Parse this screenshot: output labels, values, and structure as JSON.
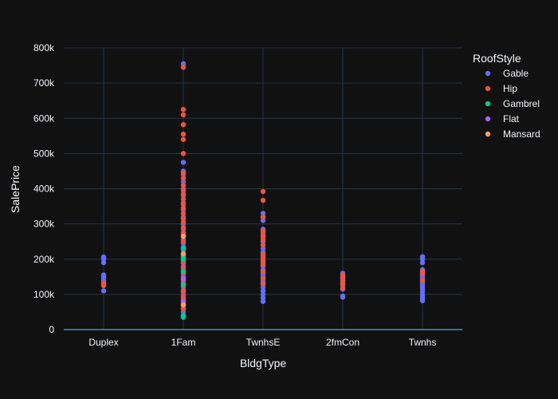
{
  "chart_data": {
    "type": "scatter",
    "xlabel": "BldgType",
    "ylabel": "SalePrice",
    "categories": [
      "Duplex",
      "1Fam",
      "TwnhsE",
      "2fmCon",
      "Twnhs"
    ],
    "ylim": [
      0,
      800000
    ],
    "yticks": [
      0,
      100000,
      200000,
      300000,
      400000,
      500000,
      600000,
      700000,
      800000
    ],
    "ytick_labels": [
      "0",
      "100k",
      "200k",
      "300k",
      "400k",
      "500k",
      "600k",
      "700k",
      "800k"
    ],
    "grid": true,
    "legend": {
      "title": "RoofStyle",
      "position": "top-right"
    },
    "series": [
      {
        "name": "Gable",
        "color": "#636efa",
        "points": {
          "Duplex": [
            110000,
            125000,
            138000,
            145000,
            150000,
            155000,
            190000,
            200000,
            206000
          ],
          "1Fam": [
            50000,
            60000,
            68000,
            75000,
            82000,
            90000,
            98000,
            105000,
            112000,
            120000,
            128000,
            135000,
            142000,
            150000,
            158000,
            165000,
            172000,
            180000,
            188000,
            195000,
            205000,
            215000,
            225000,
            235000,
            245000,
            255000,
            270000,
            285000,
            300000,
            320000,
            340000,
            360000,
            380000,
            400000,
            420000,
            440000,
            450000,
            475000,
            745000,
            755000
          ],
          "TwnhsE": [
            80000,
            90000,
            100000,
            110000,
            120000,
            128000,
            135000,
            140000,
            148000,
            155000,
            160000,
            170000,
            180000,
            190000,
            200000,
            210000,
            220000,
            230000,
            250000,
            265000,
            275000,
            285000,
            310000,
            320000,
            330000
          ],
          "2fmCon": [
            92000,
            95000,
            115000,
            125000,
            130000,
            135000,
            140000,
            145000,
            150000,
            160000
          ],
          "Twnhs": [
            82000,
            88000,
            95000,
            100000,
            108000,
            115000,
            120000,
            125000,
            130000,
            135000,
            140000,
            145000,
            150000,
            155000,
            160000,
            170000,
            190000,
            200000,
            207000
          ]
        }
      },
      {
        "name": "Hip",
        "color": "#ef553b",
        "points": {
          "Duplex": [
            125000,
            132000
          ],
          "1Fam": [
            58000,
            72000,
            85000,
            95000,
            110000,
            125000,
            140000,
            160000,
            175000,
            190000,
            210000,
            230000,
            250000,
            275000,
            290000,
            305000,
            315000,
            330000,
            345000,
            355000,
            370000,
            385000,
            395000,
            410000,
            430000,
            445000,
            500000,
            540000,
            555000,
            582000,
            610000,
            625000,
            745000
          ],
          "TwnhsE": [
            130000,
            145000,
            165000,
            185000,
            195000,
            205000,
            215000,
            240000,
            255000,
            262000,
            270000,
            280000,
            320000,
            367000,
            392000
          ],
          "2fmCon": [
            118000,
            128000,
            138000,
            148000,
            155000
          ],
          "Twnhs": [
            140000,
            160000,
            165000
          ]
        }
      },
      {
        "name": "Gambrel",
        "color": "#00cc96",
        "points": {
          "1Fam": [
            35000,
            40000,
            128000,
            165000,
            200000,
            205000,
            230000
          ]
        }
      },
      {
        "name": "Flat",
        "color": "#ab63fa",
        "points": {
          "1Fam": [
            80000,
            145000
          ]
        }
      },
      {
        "name": "Mansard",
        "color": "#ffa15a",
        "points": {
          "1Fam": [
            70000,
            215000,
            265000
          ]
        }
      }
    ]
  }
}
